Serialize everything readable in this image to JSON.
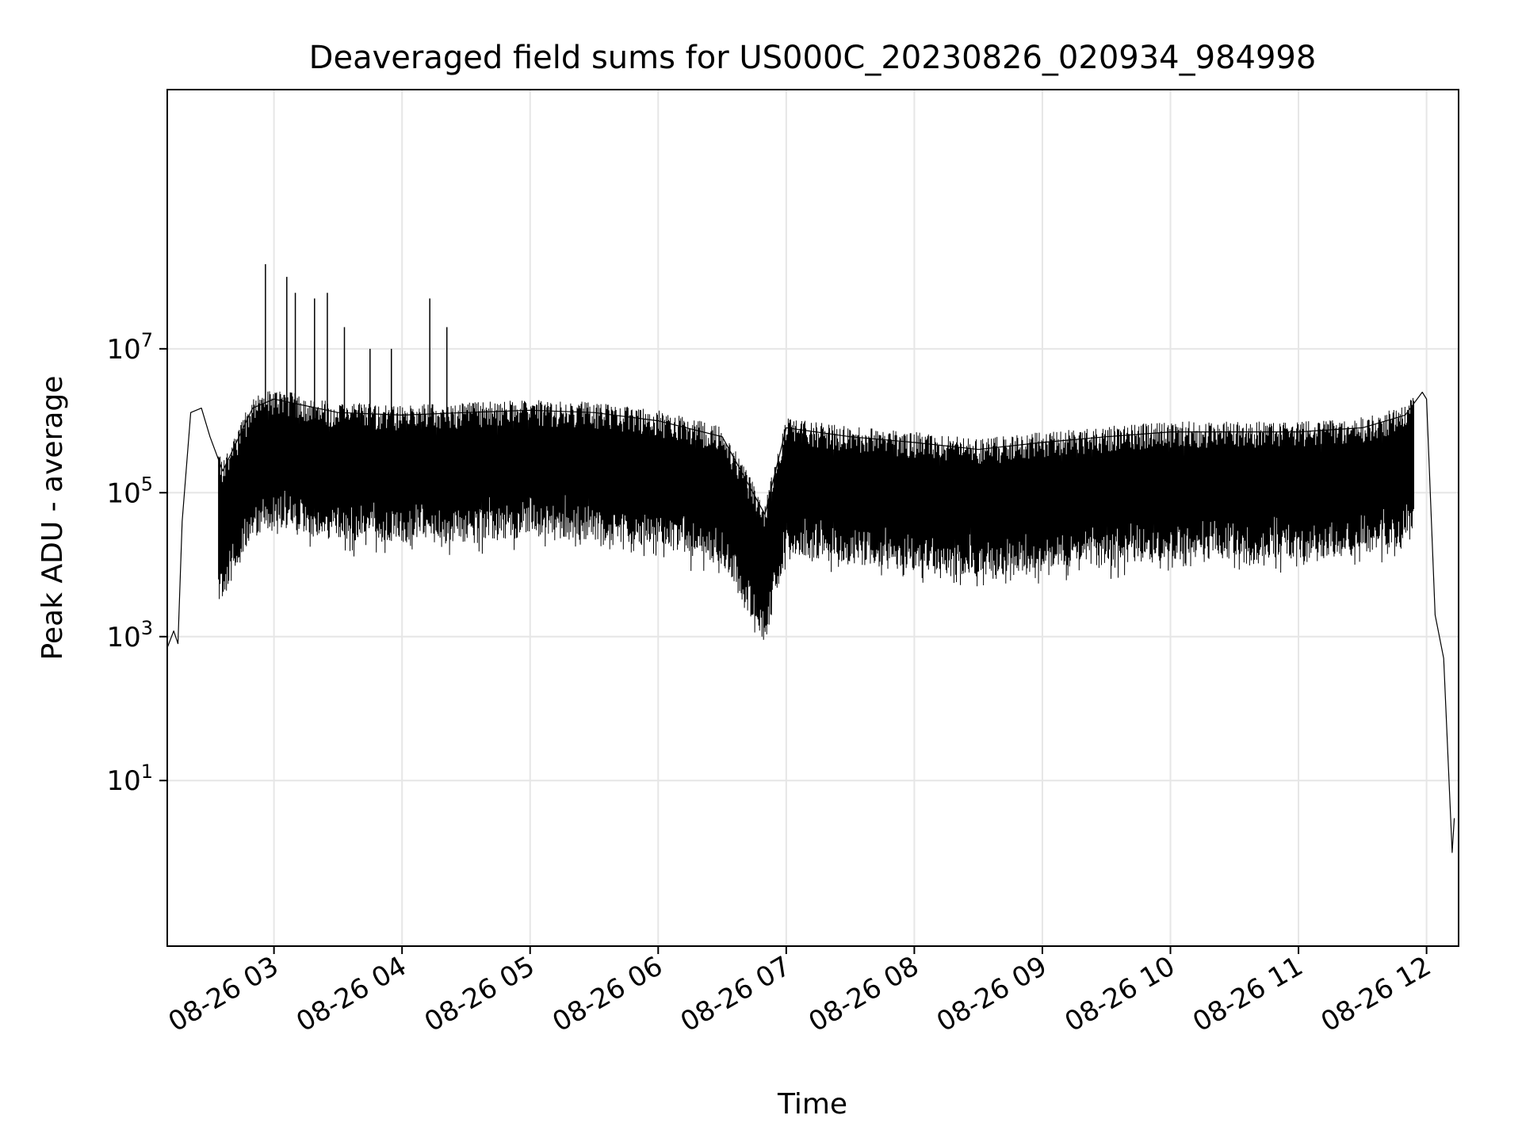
{
  "chart_data": {
    "type": "line",
    "title": "Deaveraged field sums for US000C_20230826_020934_984998",
    "xlabel": "Time",
    "ylabel": "Peak ADU - average",
    "yscale": "log",
    "xlim": [
      "2023-08-26 02:10",
      "2023-08-26 12:15"
    ],
    "ylim": [
      0.05,
      40000000000
    ],
    "grid": true,
    "line_color": "#000000",
    "xticks": [
      {
        "t": "2023-08-26 03:00",
        "label": "08-26 03"
      },
      {
        "t": "2023-08-26 04:00",
        "label": "08-26 04"
      },
      {
        "t": "2023-08-26 05:00",
        "label": "08-26 05"
      },
      {
        "t": "2023-08-26 06:00",
        "label": "08-26 06"
      },
      {
        "t": "2023-08-26 07:00",
        "label": "08-26 07"
      },
      {
        "t": "2023-08-26 08:00",
        "label": "08-26 08"
      },
      {
        "t": "2023-08-26 09:00",
        "label": "08-26 09"
      },
      {
        "t": "2023-08-26 10:00",
        "label": "08-26 10"
      },
      {
        "t": "2023-08-26 11:00",
        "label": "08-26 11"
      },
      {
        "t": "2023-08-26 12:00",
        "label": "08-26 12"
      }
    ],
    "yticks": [
      {
        "value": 10,
        "base": "10",
        "exp": "1"
      },
      {
        "value": 1000,
        "base": "10",
        "exp": "3"
      },
      {
        "value": 100000,
        "base": "10",
        "exp": "5"
      },
      {
        "value": 10000000,
        "base": "10",
        "exp": "7"
      }
    ],
    "series": [
      {
        "values": [
          [
            "2023-08-26 02:10",
            700
          ],
          [
            "2023-08-26 02:13",
            1200
          ],
          [
            "2023-08-26 02:15",
            800
          ],
          [
            "2023-08-26 02:17",
            40000
          ],
          [
            "2023-08-26 02:21",
            1300000
          ],
          [
            "2023-08-26 02:26",
            1500000
          ],
          [
            "2023-08-26 02:30",
            600000
          ],
          [
            "2023-08-26 02:36",
            200000
          ],
          [
            "2023-08-26 02:50",
            1500000
          ],
          [
            "2023-08-26 03:00",
            2000000
          ],
          [
            "2023-08-26 03:30",
            1300000
          ],
          [
            "2023-08-26 04:00",
            1200000
          ],
          [
            "2023-08-26 04:30",
            1300000
          ],
          [
            "2023-08-26 05:00",
            1400000
          ],
          [
            "2023-08-26 05:30",
            1300000
          ],
          [
            "2023-08-26 06:00",
            1000000
          ],
          [
            "2023-08-26 06:30",
            600000
          ],
          [
            "2023-08-26 06:50",
            50000
          ],
          [
            "2023-08-26 07:00",
            800000
          ],
          [
            "2023-08-26 07:30",
            600000
          ],
          [
            "2023-08-26 08:00",
            500000
          ],
          [
            "2023-08-26 08:30",
            400000
          ],
          [
            "2023-08-26 09:00",
            500000
          ],
          [
            "2023-08-26 09:30",
            600000
          ],
          [
            "2023-08-26 10:00",
            700000
          ],
          [
            "2023-08-26 10:30",
            700000
          ],
          [
            "2023-08-26 11:00",
            700000
          ],
          [
            "2023-08-26 11:30",
            800000
          ],
          [
            "2023-08-26 11:50",
            1200000
          ],
          [
            "2023-08-26 11:58",
            2500000
          ],
          [
            "2023-08-26 12:00",
            2000000
          ],
          [
            "2023-08-26 12:04",
            2000
          ],
          [
            "2023-08-26 12:08",
            500
          ],
          [
            "2023-08-26 12:12",
            1
          ],
          [
            "2023-08-26 12:13",
            3
          ]
        ],
        "spikes": [
          [
            "2023-08-26 02:56",
            150000000
          ],
          [
            "2023-08-26 03:06",
            100000000
          ],
          [
            "2023-08-26 03:10",
            60000000
          ],
          [
            "2023-08-26 03:19",
            50000000
          ],
          [
            "2023-08-26 03:25",
            60000000
          ],
          [
            "2023-08-26 03:33",
            20000000
          ],
          [
            "2023-08-26 03:45",
            10000000
          ],
          [
            "2023-08-26 03:55",
            10000000
          ],
          [
            "2023-08-26 04:13",
            50000000
          ],
          [
            "2023-08-26 04:21",
            20000000
          ]
        ]
      }
    ]
  }
}
